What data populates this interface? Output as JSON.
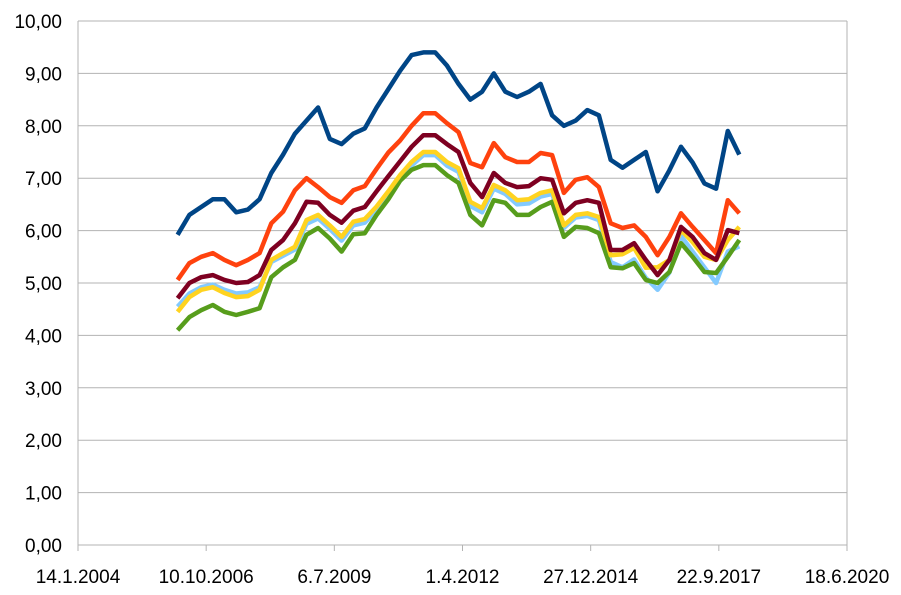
{
  "chart_data": {
    "type": "line",
    "title": "",
    "xlabel": "",
    "ylabel": "",
    "ylim": [
      0,
      10
    ],
    "xlim": [
      "2004-01-14",
      "2020-06-18"
    ],
    "grid": "horizontal",
    "legend": "none",
    "y_ticks": [
      "0,00",
      "1,00",
      "2,00",
      "3,00",
      "4,00",
      "5,00",
      "6,00",
      "7,00",
      "8,00",
      "9,00",
      "10,00"
    ],
    "x_ticks": [
      {
        "date": "2004-01-14",
        "label": "14.1.2004"
      },
      {
        "date": "2006-10-10",
        "label": "10.10.2006"
      },
      {
        "date": "2009-07-06",
        "label": "6.7.2009"
      },
      {
        "date": "2012-04-01",
        "label": "1.4.2012"
      },
      {
        "date": "2014-12-27",
        "label": "27.12.2014"
      },
      {
        "date": "2017-09-22",
        "label": "22.9.2017"
      },
      {
        "date": "2020-06-18",
        "label": "18.6.2020"
      }
    ],
    "x": [
      "2006-03-01",
      "2006-06-01",
      "2006-09-01",
      "2006-12-01",
      "2007-03-01",
      "2007-06-01",
      "2007-09-01",
      "2007-12-01",
      "2008-03-01",
      "2008-06-01",
      "2008-09-01",
      "2008-12-01",
      "2009-03-01",
      "2009-06-01",
      "2009-09-01",
      "2009-12-01",
      "2010-03-01",
      "2010-06-01",
      "2010-09-01",
      "2010-12-01",
      "2011-03-01",
      "2011-06-01",
      "2011-09-01",
      "2011-12-01",
      "2012-03-01",
      "2012-06-01",
      "2012-09-01",
      "2012-12-01",
      "2013-03-01",
      "2013-06-01",
      "2013-09-01",
      "2013-12-01",
      "2014-03-01",
      "2014-06-01",
      "2014-09-01",
      "2014-12-01",
      "2015-03-01",
      "2015-06-01",
      "2015-09-01",
      "2015-12-01",
      "2016-03-01",
      "2016-06-01",
      "2016-09-01",
      "2016-12-01",
      "2017-03-01",
      "2017-06-01",
      "2017-09-01",
      "2017-12-01",
      "2018-03-01"
    ],
    "series": [
      {
        "color": "#83caff",
        "values": [
          4.55,
          4.8,
          4.92,
          4.97,
          4.87,
          4.8,
          4.82,
          4.92,
          5.4,
          5.52,
          5.64,
          6.13,
          6.23,
          6.03,
          5.81,
          6.1,
          6.15,
          6.39,
          6.68,
          6.99,
          7.24,
          7.44,
          7.44,
          7.24,
          7.12,
          6.47,
          6.35,
          6.8,
          6.7,
          6.5,
          6.52,
          6.65,
          6.7,
          6.05,
          6.25,
          6.28,
          6.2,
          5.4,
          5.3,
          5.45,
          5.1,
          4.87,
          5.2,
          5.9,
          5.6,
          5.3,
          5.0,
          5.6,
          5.7
        ]
      },
      {
        "color": "#004586",
        "values": [
          5.92,
          6.3,
          6.45,
          6.6,
          6.6,
          6.35,
          6.4,
          6.6,
          7.1,
          7.45,
          7.85,
          8.1,
          8.35,
          7.75,
          7.65,
          7.85,
          7.95,
          8.35,
          8.7,
          9.05,
          9.35,
          9.4,
          9.4,
          9.15,
          8.8,
          8.5,
          8.65,
          9.0,
          8.65,
          8.55,
          8.65,
          8.8,
          8.2,
          8.0,
          8.1,
          8.3,
          8.2,
          7.35,
          7.2,
          7.35,
          7.5,
          6.75,
          7.15,
          7.6,
          7.3,
          6.9,
          6.8,
          7.9,
          7.45
        ]
      },
      {
        "color": "#ff420e",
        "values": [
          5.06,
          5.38,
          5.5,
          5.57,
          5.44,
          5.34,
          5.44,
          5.57,
          6.14,
          6.36,
          6.77,
          7.0,
          6.83,
          6.64,
          6.53,
          6.77,
          6.85,
          7.18,
          7.49,
          7.72,
          8.0,
          8.24,
          8.24,
          8.05,
          7.88,
          7.29,
          7.21,
          7.67,
          7.4,
          7.31,
          7.31,
          7.48,
          7.44,
          6.72,
          6.97,
          7.02,
          6.83,
          6.14,
          6.05,
          6.1,
          5.88,
          5.53,
          5.88,
          6.33,
          6.07,
          5.82,
          5.57,
          6.58,
          6.33
        ]
      },
      {
        "color": "#579d1c",
        "values": [
          4.1,
          4.35,
          4.48,
          4.58,
          4.45,
          4.39,
          4.45,
          4.52,
          5.11,
          5.3,
          5.44,
          5.92,
          6.05,
          5.85,
          5.6,
          5.93,
          5.95,
          6.3,
          6.6,
          6.95,
          7.16,
          7.25,
          7.25,
          7.06,
          6.91,
          6.3,
          6.1,
          6.58,
          6.53,
          6.3,
          6.3,
          6.45,
          6.55,
          5.88,
          6.07,
          6.05,
          5.95,
          5.3,
          5.28,
          5.38,
          5.06,
          5.0,
          5.21,
          5.76,
          5.5,
          5.21,
          5.19,
          5.5,
          5.82
        ]
      },
      {
        "color": "#ffd320",
        "values": [
          4.45,
          4.73,
          4.87,
          4.92,
          4.81,
          4.73,
          4.75,
          4.87,
          5.44,
          5.57,
          5.69,
          6.2,
          6.3,
          6.1,
          5.88,
          6.17,
          6.22,
          6.46,
          6.75,
          7.06,
          7.31,
          7.5,
          7.5,
          7.31,
          7.19,
          6.55,
          6.43,
          6.87,
          6.77,
          6.58,
          6.6,
          6.72,
          6.77,
          6.1,
          6.3,
          6.33,
          6.26,
          5.53,
          5.55,
          5.67,
          5.29,
          5.3,
          5.44,
          6.01,
          5.78,
          5.5,
          5.44,
          5.82,
          6.07
        ]
      },
      {
        "color": "#7e0021",
        "values": [
          4.71,
          5.0,
          5.11,
          5.15,
          5.06,
          5.0,
          5.02,
          5.15,
          5.63,
          5.82,
          6.14,
          6.55,
          6.53,
          6.3,
          6.15,
          6.38,
          6.45,
          6.75,
          7.04,
          7.32,
          7.6,
          7.82,
          7.82,
          7.65,
          7.5,
          6.91,
          6.64,
          7.1,
          6.91,
          6.83,
          6.85,
          7.0,
          6.97,
          6.33,
          6.53,
          6.58,
          6.53,
          5.63,
          5.63,
          5.76,
          5.44,
          5.15,
          5.44,
          6.07,
          5.88,
          5.57,
          5.44,
          6.01,
          5.95
        ]
      }
    ]
  }
}
